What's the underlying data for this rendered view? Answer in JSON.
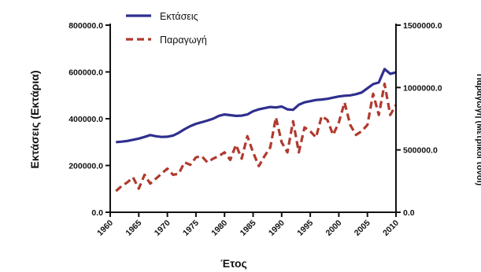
{
  "chart_data": {
    "type": "line",
    "title": "",
    "xlabel": "Έτος",
    "ylabel_left": "Εκτάσεις (Εκτάρια)",
    "ylabel_right": "Παραγωγή (Μετρικοί τόνοι)",
    "xlim": [
      1960,
      2010
    ],
    "ylim_left": [
      0,
      800000
    ],
    "ylim_right": [
      0,
      1500000
    ],
    "x_ticks": [
      "1960",
      "1965",
      "1970",
      "1975",
      "1980",
      "1985",
      "1990",
      "1995",
      "2000",
      "2005",
      "2010"
    ],
    "y_left_ticks": [
      "0.0",
      "200000.0",
      "400000.0",
      "600000.0",
      "800000.0"
    ],
    "y_right_ticks": [
      "0.0",
      "500000.0",
      "1000000.0",
      "1500000.0"
    ],
    "legend_position": "top-left",
    "grid": false,
    "x": [
      1961,
      1962,
      1963,
      1964,
      1965,
      1966,
      1967,
      1968,
      1969,
      1970,
      1971,
      1972,
      1973,
      1974,
      1975,
      1976,
      1977,
      1978,
      1979,
      1980,
      1981,
      1982,
      1983,
      1984,
      1985,
      1986,
      1987,
      1988,
      1989,
      1990,
      1991,
      1992,
      1993,
      1994,
      1995,
      1996,
      1997,
      1998,
      1999,
      2000,
      2001,
      2002,
      2003,
      2004,
      2005,
      2006,
      2007,
      2008,
      2009,
      2010
    ],
    "series": [
      {
        "name": "Εκτάσεις",
        "axis": "left",
        "color": "#2f2f8f",
        "style": "solid",
        "values": [
          300000,
          302000,
          305000,
          310000,
          315000,
          322000,
          330000,
          325000,
          322000,
          323000,
          328000,
          340000,
          355000,
          368000,
          378000,
          385000,
          392000,
          400000,
          412000,
          418000,
          415000,
          412000,
          413000,
          418000,
          432000,
          440000,
          445000,
          450000,
          448000,
          452000,
          440000,
          438000,
          460000,
          470000,
          475000,
          480000,
          482000,
          485000,
          490000,
          495000,
          498000,
          500000,
          505000,
          512000,
          530000,
          548000,
          555000,
          612000,
          592000,
          598000
        ]
      },
      {
        "name": "Παραγωγή",
        "axis": "right",
        "color": "#b03a2e",
        "style": "dashed",
        "values": [
          170000,
          210000,
          240000,
          280000,
          190000,
          300000,
          230000,
          270000,
          310000,
          350000,
          300000,
          310000,
          400000,
          380000,
          440000,
          450000,
          400000,
          430000,
          450000,
          480000,
          420000,
          540000,
          430000,
          610000,
          480000,
          370000,
          450000,
          520000,
          760000,
          560000,
          480000,
          730000,
          480000,
          680000,
          650000,
          600000,
          770000,
          740000,
          620000,
          720000,
          880000,
          700000,
          620000,
          650000,
          700000,
          950000,
          780000,
          1030000,
          780000,
          860000
        ]
      }
    ]
  }
}
